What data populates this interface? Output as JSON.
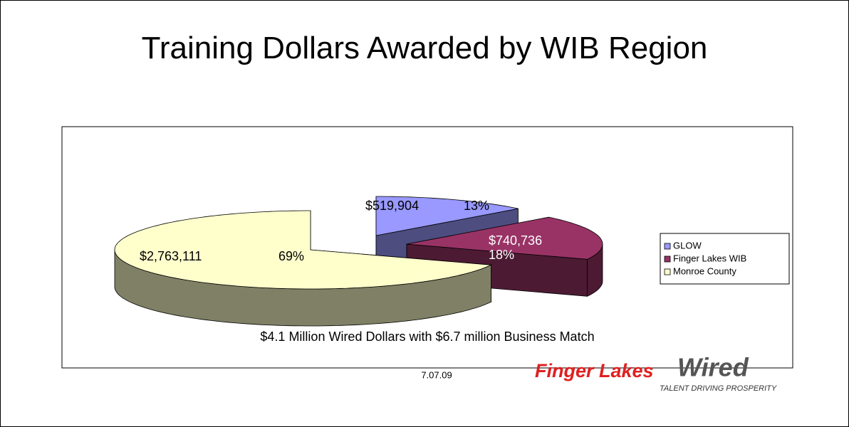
{
  "chart_data": {
    "type": "pie",
    "title": "Training Dollars Awarded by WIB Region",
    "categories": [
      "GLOW",
      "Finger Lakes WIB",
      "Monroe County"
    ],
    "values": [
      519904,
      740736,
      2763111
    ],
    "value_labels": [
      "$519,904",
      "$740,736",
      "$2,763,111"
    ],
    "percent_labels": [
      "13%",
      "18%",
      "69%"
    ],
    "colors": [
      "#9999ff",
      "#993366",
      "#ffffcc"
    ],
    "annotation": "$4.1 Million Wired Dollars with $6.7 million Business Match",
    "date": "7.07.09",
    "legend": "right"
  },
  "logo": {
    "name_a": "Finger Lakes",
    "name_b": "Wired",
    "tagline": "TALENT DRIVING PROSPERITY"
  }
}
